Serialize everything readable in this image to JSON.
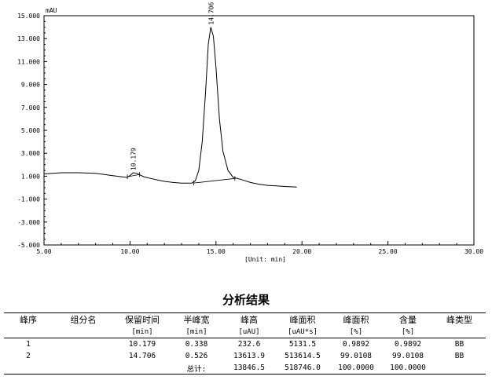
{
  "chart_data": {
    "type": "line",
    "y_unit_label": "mAU",
    "x_unit_label": "[Unit: min]",
    "xlim": [
      5.0,
      30.0
    ],
    "ylim": [
      -5.0,
      15.0
    ],
    "x_ticks": [
      5,
      10,
      15,
      20,
      25,
      30
    ],
    "x_tick_labels": [
      "5.00",
      "10.00",
      "15.00",
      "20.00",
      "25.00",
      "30.00"
    ],
    "y_ticks": [
      15,
      13,
      11,
      9,
      7,
      5,
      3,
      1,
      -1,
      -3,
      -5
    ],
    "y_tick_labels": [
      "15.000",
      "13.000",
      "11.000",
      "9.000",
      "7.000",
      "5.000",
      "3.000",
      "1.000",
      "-1.000",
      "-3.000",
      "-5.000"
    ],
    "grid": false,
    "series": [
      {
        "x": [
          5.0,
          6.0,
          7.0,
          8.0,
          9.0,
          9.8,
          10.0,
          10.18,
          10.4,
          10.8,
          11.5,
          12.0,
          12.5,
          13.0,
          13.6,
          13.8,
          14.0,
          14.2,
          14.4,
          14.55,
          14.7,
          14.85,
          15.0,
          15.2,
          15.4,
          15.7,
          16.0,
          16.5,
          17.0,
          17.5,
          18.0,
          18.5,
          19.0,
          19.7
        ],
        "y": [
          1.2,
          1.3,
          1.3,
          1.25,
          1.05,
          0.9,
          1.05,
          1.3,
          1.25,
          0.95,
          0.7,
          0.55,
          0.45,
          0.4,
          0.4,
          0.6,
          1.5,
          4.0,
          8.5,
          12.5,
          14.0,
          13.2,
          10.5,
          6.0,
          3.2,
          1.5,
          0.9,
          0.7,
          0.45,
          0.3,
          0.2,
          0.15,
          0.1,
          0.05
        ]
      }
    ],
    "peak_labels": [
      {
        "x": 10.179,
        "y": 1.3,
        "text": "10.179"
      },
      {
        "x": 14.706,
        "y": 14.0,
        "text": "14.706"
      }
    ],
    "baselines": [
      {
        "x": [
          9.85,
          10.55
        ],
        "y": [
          0.95,
          1.15
        ]
      },
      {
        "x": [
          13.7,
          16.1
        ],
        "y": [
          0.4,
          0.8
        ]
      }
    ]
  },
  "results": {
    "title": "分析结果",
    "headers": [
      "峰序",
      "组分名",
      "保留时间",
      "半峰宽",
      "峰高",
      "峰面积",
      "峰面积",
      "含量",
      "峰类型"
    ],
    "units": [
      "",
      "",
      "[min]",
      "[min]",
      "[uAU]",
      "[uAU*s]",
      "[%]",
      "[%]",
      ""
    ],
    "rows": [
      [
        "1",
        "",
        "10.179",
        "0.338",
        "232.6",
        "5131.5",
        "0.9892",
        "0.9892",
        "BB"
      ],
      [
        "2",
        "",
        "14.706",
        "0.526",
        "13613.9",
        "513614.5",
        "99.0108",
        "99.0108",
        "BB"
      ]
    ],
    "total": {
      "label": "总计:",
      "height": "13846.5",
      "area": "518746.0",
      "area_pct": "100.0000",
      "content": "100.0000"
    }
  }
}
